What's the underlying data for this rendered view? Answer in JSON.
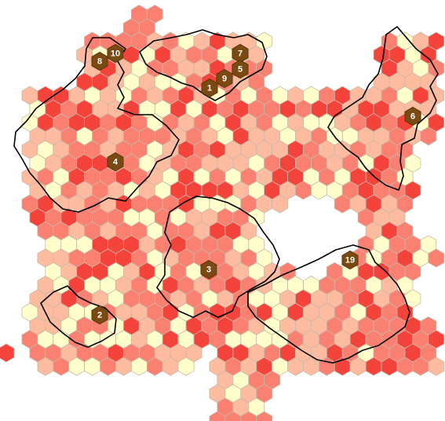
{
  "board": {
    "type": "hex-territory-map",
    "palette": {
      "level_0": "#ffffcc",
      "level_1": "#fdbb9f",
      "level_2": "#fa8072",
      "level_3": "#f4433b",
      "marker": "#7b4a12",
      "border": "#000000"
    },
    "markers": [
      {
        "id": "8",
        "label": "8"
      },
      {
        "id": "10",
        "label": "10"
      },
      {
        "id": "7",
        "label": "7"
      },
      {
        "id": "5",
        "label": "5"
      },
      {
        "id": "9",
        "label": "9"
      },
      {
        "id": "1",
        "label": "1"
      },
      {
        "id": "6",
        "label": "6"
      },
      {
        "id": "4",
        "label": "4"
      },
      {
        "id": "3",
        "label": "3"
      },
      {
        "id": "19",
        "label": "19"
      },
      {
        "id": "2",
        "label": "2"
      }
    ]
  }
}
